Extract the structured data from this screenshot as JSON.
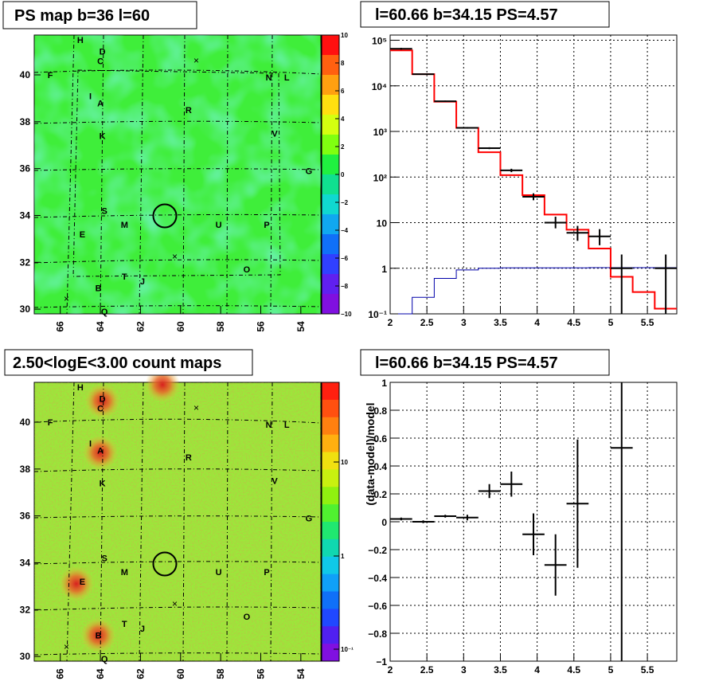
{
  "panels": {
    "ps_map_title": "PS map b=36 l=60",
    "spectrum_title": "l=60.66 b=34.15 PS=4.57",
    "count_map_title": "2.50<logE<3.00 count maps",
    "residual_title": "l=60.66 b=34.15 PS=4.57"
  },
  "chart_data": [
    {
      "type": "heatmap",
      "title": "PS map b=36 l=60",
      "x_ticks": [
        "66",
        "64",
        "62",
        "60",
        "58",
        "56",
        "54"
      ],
      "y_ticks": [
        "30",
        "32",
        "34",
        "36",
        "38",
        "40"
      ],
      "xlim": [
        67.3,
        53.0
      ],
      "ylim": [
        29.8,
        41.7
      ],
      "colorbar": {
        "range": [
          -10,
          10
        ],
        "ticks": [
          "10",
          "8",
          "6",
          "4",
          "2",
          "0",
          "−2",
          "−4",
          "−6",
          "−8",
          "−10"
        ]
      },
      "marked_position": {
        "l": 60.66,
        "b": 34.15
      },
      "colors": {
        "background": "#3fee3a",
        "highlight": "#2fe6b4"
      },
      "source_labels": [
        {
          "t": "H",
          "l": 65.0,
          "b": 41.5
        },
        {
          "t": "D",
          "l": 63.9,
          "b": 41.0
        },
        {
          "t": "C",
          "l": 64.0,
          "b": 40.6
        },
        {
          "t": "F",
          "l": 66.5,
          "b": 40.0
        },
        {
          "t": "N",
          "l": 55.6,
          "b": 39.9
        },
        {
          "t": "L",
          "l": 54.7,
          "b": 39.9
        },
        {
          "t": "I",
          "l": 64.5,
          "b": 39.1
        },
        {
          "t": "A",
          "l": 64.0,
          "b": 38.8
        },
        {
          "t": "R",
          "l": 59.6,
          "b": 38.5
        },
        {
          "t": "K",
          "l": 63.9,
          "b": 37.4
        },
        {
          "t": "V",
          "l": 55.3,
          "b": 37.5
        },
        {
          "t": "G",
          "l": 53.6,
          "b": 35.9
        },
        {
          "t": "S",
          "l": 63.8,
          "b": 34.2
        },
        {
          "t": "E",
          "l": 64.9,
          "b": 33.2
        },
        {
          "t": "M",
          "l": 62.8,
          "b": 33.6
        },
        {
          "t": "U",
          "l": 58.1,
          "b": 33.6
        },
        {
          "t": "P",
          "l": 55.7,
          "b": 33.6
        },
        {
          "t": "O",
          "l": 56.7,
          "b": 31.7
        },
        {
          "t": "T",
          "l": 62.8,
          "b": 31.4
        },
        {
          "t": "J",
          "l": 61.9,
          "b": 31.2
        },
        {
          "t": "B",
          "l": 64.1,
          "b": 30.9
        },
        {
          "t": "Q",
          "l": 63.8,
          "b": 29.9
        }
      ]
    },
    {
      "type": "line",
      "title": "l=60.66 b=34.15 PS=4.57",
      "x_ticks": [
        "2",
        "2.5",
        "3",
        "3.5",
        "4",
        "4.5",
        "5",
        "5.5"
      ],
      "y_ticks": [
        "10⁻¹",
        "1",
        "10",
        "10²",
        "10³",
        "10⁴",
        "10⁵"
      ],
      "xlim": [
        2.0,
        5.9
      ],
      "ylim": [
        0.1,
        130000
      ],
      "y_scale": "log",
      "grid": true,
      "colors": {
        "model": "#ff0000",
        "source": "#0000aa",
        "data": "#000000"
      },
      "series": [
        {
          "edges": [
            2.0,
            2.3,
            2.6,
            2.9,
            3.2,
            3.5,
            3.8,
            4.1,
            4.4,
            4.7,
            5.0,
            5.3,
            5.6,
            5.9
          ],
          "values": [
            60000,
            18000,
            4500,
            1200,
            350,
            110,
            40,
            15,
            7,
            2.7,
            0.65,
            0.3,
            0.13
          ]
        },
        {
          "edges": [
            2.0,
            2.3,
            2.6,
            2.9,
            3.2,
            3.5,
            3.8,
            4.1,
            4.4,
            4.7,
            5.0,
            5.3,
            5.6,
            5.9
          ],
          "values": [
            0.1,
            0.23,
            0.6,
            0.92,
            1.0,
            1.02,
            1.02,
            1.02,
            1.02,
            1.03,
            1.03,
            1.03,
            1.03
          ]
        },
        {
          "points": [
            {
              "x": 2.15,
              "y": 65000,
              "yerr": [
                62000,
                68000
              ]
            },
            {
              "x": 2.45,
              "y": 18000,
              "yerr": [
                17500,
                18500
              ]
            },
            {
              "x": 2.75,
              "y": 4600,
              "yerr": [
                4450,
                4750
              ]
            },
            {
              "x": 3.05,
              "y": 1200,
              "yerr": [
                1150,
                1250
              ]
            },
            {
              "x": 3.35,
              "y": 430,
              "yerr": [
                410,
                450
              ]
            },
            {
              "x": 3.65,
              "y": 140,
              "yerr": [
                128,
                152
              ]
            },
            {
              "x": 3.95,
              "y": 37,
              "yerr": [
                31,
                44
              ]
            },
            {
              "x": 4.25,
              "y": 10,
              "yerr": [
                7.5,
                13.5
              ]
            },
            {
              "x": 4.55,
              "y": 6,
              "yerr": [
                4,
                8.5
              ]
            },
            {
              "x": 4.85,
              "y": 5,
              "yerr": [
                3.2,
                7.2
              ]
            },
            {
              "x": 5.15,
              "y": 1,
              "yerr": [
                0.1,
                2
              ]
            },
            {
              "x": 5.75,
              "y": 1,
              "yerr": [
                0.1,
                2
              ]
            }
          ]
        }
      ]
    },
    {
      "type": "heatmap",
      "title": "2.50<logE<3.00 count maps",
      "x_ticks": [
        "66",
        "64",
        "62",
        "60",
        "58",
        "56",
        "54"
      ],
      "y_ticks": [
        "30",
        "32",
        "34",
        "36",
        "38",
        "40"
      ],
      "xlim": [
        67.3,
        53.0
      ],
      "ylim": [
        29.8,
        41.7
      ],
      "colorbar": {
        "scale": "log",
        "ticks": [
          "10",
          "1",
          "10⁻¹"
        ]
      },
      "marked_position": {
        "l": 60.66,
        "b": 34.15
      },
      "colors": {
        "background": "#9be83a",
        "hot": "#e2452a"
      },
      "hot_spots": [
        {
          "l": 63.9,
          "b": 40.9
        },
        {
          "l": 64.0,
          "b": 38.7
        },
        {
          "l": 64.1,
          "b": 30.9
        },
        {
          "l": 60.9,
          "b": 41.6
        },
        {
          "l": 65.2,
          "b": 33.1
        }
      ]
    },
    {
      "type": "scatter",
      "title": "l=60.66 b=34.15 PS=4.57",
      "ylabel": "(data-model)/model",
      "x_ticks": [
        "2",
        "2.5",
        "3",
        "3.5",
        "4",
        "4.5",
        "5",
        "5.5"
      ],
      "y_ticks": [
        "1",
        "0.8",
        "0.6",
        "0.4",
        "0.2",
        "0",
        "−0.2",
        "−0.4",
        "−0.6",
        "−0.8",
        "−1"
      ],
      "xlim": [
        2.0,
        5.9
      ],
      "ylim": [
        -1,
        1
      ],
      "grid": true,
      "points": [
        {
          "x": 2.15,
          "y": 0.02,
          "yerr": 0.01
        },
        {
          "x": 2.45,
          "y": 0.0,
          "yerr": 0.01
        },
        {
          "x": 2.75,
          "y": 0.04,
          "yerr": 0.01
        },
        {
          "x": 3.05,
          "y": 0.03,
          "yerr": 0.02
        },
        {
          "x": 3.35,
          "y": 0.22,
          "yerr": 0.05
        },
        {
          "x": 3.65,
          "y": 0.27,
          "yerr": 0.09
        },
        {
          "x": 3.95,
          "y": -0.09,
          "yerr": 0.15
        },
        {
          "x": 4.25,
          "y": -0.31,
          "yerr": 0.22
        },
        {
          "x": 4.55,
          "y": 0.13,
          "yerr": 0.46
        },
        {
          "x": 5.15,
          "y": 0.53,
          "yerr": 1.6
        }
      ]
    }
  ]
}
